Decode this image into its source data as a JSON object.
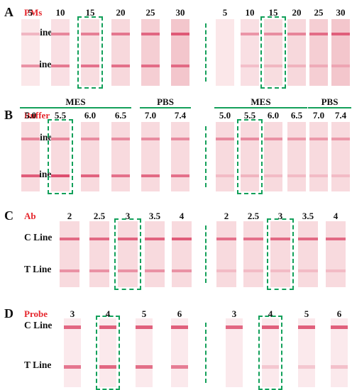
{
  "colors": {
    "accent": "#e5262c",
    "highlight_box": "#12a05a",
    "band": "#d93a5e"
  },
  "line_labels": {
    "control": "C Line",
    "test": "T Line"
  },
  "panels": [
    {
      "letter": "A",
      "parameter": "PMs",
      "highlighted_value": "15",
      "groups": [],
      "sides": [
        {
          "columns": [
            "5",
            "10",
            "15",
            "20",
            "25",
            "30"
          ],
          "c_line_intensity": [
            0.15,
            0.45,
            0.5,
            0.55,
            0.65,
            0.75
          ],
          "t_line_intensity": [
            0.4,
            0.55,
            0.6,
            0.6,
            0.6,
            0.6
          ],
          "strip_tint": [
            0.1,
            0.25,
            0.3,
            0.4,
            0.6,
            0.75
          ]
        },
        {
          "columns": [
            "5",
            "10",
            "15",
            "20",
            "25",
            "30"
          ],
          "c_line_intensity": [
            0.0,
            0.35,
            0.4,
            0.45,
            0.6,
            0.7
          ],
          "t_line_intensity": [
            0.0,
            0.05,
            0.1,
            0.1,
            0.1,
            0.1
          ],
          "strip_tint": [
            0.1,
            0.25,
            0.3,
            0.4,
            0.6,
            0.75
          ]
        }
      ]
    },
    {
      "letter": "B",
      "parameter": "Buffer",
      "highlighted_value": "5.5",
      "groups": [
        {
          "label": "MES",
          "span": [
            0,
            3
          ]
        },
        {
          "label": "PBS",
          "span": [
            4,
            5
          ]
        }
      ],
      "sides": [
        {
          "columns": [
            "5.0",
            "5.5",
            "6.0",
            "6.5",
            "7.0",
            "7.4"
          ],
          "c_line_intensity": [
            0.45,
            0.45,
            0.4,
            0.4,
            0.4,
            0.4
          ],
          "t_line_intensity": [
            0.75,
            0.85,
            0.7,
            0.6,
            0.65,
            0.6
          ],
          "strip_tint": [
            0.35,
            0.35,
            0.35,
            0.35,
            0.35,
            0.35
          ]
        },
        {
          "columns": [
            "5.0",
            "5.5",
            "6.0",
            "6.5",
            "7.0",
            "7.4"
          ],
          "c_line_intensity": [
            0.4,
            0.4,
            0.35,
            0.3,
            0.3,
            0.3
          ],
          "t_line_intensity": [
            0.05,
            0.1,
            0.05,
            0.05,
            0.05,
            0.05
          ],
          "strip_tint": [
            0.35,
            0.35,
            0.35,
            0.35,
            0.35,
            0.35
          ]
        }
      ]
    },
    {
      "letter": "C",
      "parameter": "Ab",
      "highlighted_value": "3",
      "groups": [],
      "sides": [
        {
          "columns": [
            "2",
            "2.5",
            "3",
            "3.5",
            "4"
          ],
          "c_line_intensity": [
            0.65,
            0.65,
            0.7,
            0.7,
            0.75
          ],
          "t_line_intensity": [
            0.35,
            0.35,
            0.35,
            0.35,
            0.35
          ],
          "strip_tint": [
            0.35,
            0.35,
            0.35,
            0.35,
            0.35
          ]
        },
        {
          "columns": [
            "2",
            "2.5",
            "3",
            "3.5",
            "4"
          ],
          "c_line_intensity": [
            0.6,
            0.6,
            0.65,
            0.65,
            0.65
          ],
          "t_line_intensity": [
            0.05,
            0.05,
            0.05,
            0.05,
            0.05
          ],
          "strip_tint": [
            0.35,
            0.35,
            0.35,
            0.35,
            0.35
          ]
        }
      ]
    },
    {
      "letter": "D",
      "parameter": "Probe",
      "highlighted_value": "4",
      "groups": [],
      "sides": [
        {
          "columns": [
            "3",
            "4",
            "5",
            "6"
          ],
          "c_line_intensity": [
            0.7,
            0.75,
            0.75,
            0.75
          ],
          "t_line_intensity": [
            0.6,
            0.7,
            0.65,
            0.55
          ],
          "strip_tint": [
            0.05,
            0.05,
            0.05,
            0.05
          ]
        },
        {
          "columns": [
            "3",
            "4",
            "5",
            "6"
          ],
          "c_line_intensity": [
            0.7,
            0.75,
            0.75,
            0.75
          ],
          "t_line_intensity": [
            0.0,
            0.05,
            0.05,
            0.1
          ],
          "strip_tint": [
            0.05,
            0.05,
            0.05,
            0.05
          ]
        }
      ]
    }
  ]
}
